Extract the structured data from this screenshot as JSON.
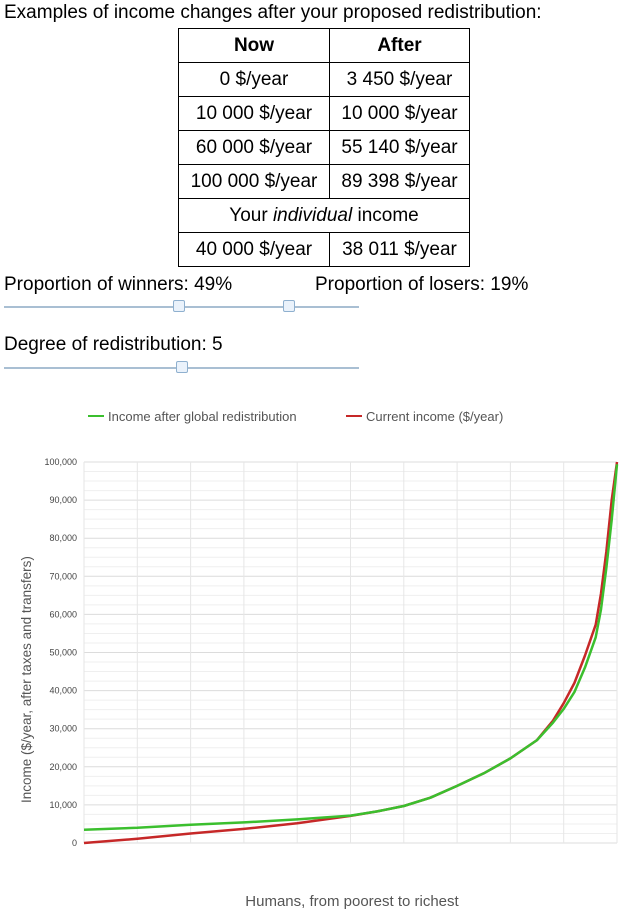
{
  "title": "Examples of income changes after your proposed redistribution:",
  "table": {
    "headers": [
      "Now",
      "After"
    ],
    "rows": [
      [
        "0 $/year",
        "3 450 $/year"
      ],
      [
        "10 000 $/year",
        "10 000 $/year"
      ],
      [
        "60 000 $/year",
        "55 140 $/year"
      ],
      [
        "100 000 $/year",
        "89 398 $/year"
      ]
    ],
    "individual_prefix": "Your ",
    "individual_em": "individual",
    "individual_suffix": " income",
    "individual_row": [
      "40 000 $/year",
      "38 011 $/year"
    ]
  },
  "controls": {
    "winners_label": "Proportion of winners: 49%",
    "losers_label": "Proportion of losers: 19%",
    "winners_value_pct": 49,
    "losers_value_pct": 19,
    "degree_label": "Degree of redistribution: 5",
    "degree_value": 5
  },
  "colors": {
    "after_series": "#3bbf2e",
    "current_series": "#c62828",
    "gridline": "#e6e6e6",
    "slider_track": "#a9bfd3"
  },
  "chart_data": {
    "type": "line",
    "title": "",
    "xlabel": "Humans, from poorest to richest",
    "ylabel": "Income ($/year, after taxes and transfers)",
    "ylim": [
      0,
      100000
    ],
    "yticks": [
      0,
      10000,
      20000,
      30000,
      40000,
      50000,
      60000,
      70000,
      80000,
      90000,
      100000
    ],
    "ytick_labels": [
      "0",
      "10,000",
      "20,000",
      "30,000",
      "40,000",
      "50,000",
      "60,000",
      "70,000",
      "80,000",
      "90,000",
      "100,000"
    ],
    "xlim": [
      0,
      100
    ],
    "grid": true,
    "legend_position": "top",
    "x": [
      0,
      10,
      20,
      30,
      40,
      50,
      55,
      60,
      65,
      70,
      75,
      80,
      85,
      88,
      90,
      92,
      94,
      96,
      97,
      98,
      99,
      100
    ],
    "series": [
      {
        "name": "Income after global redistribution",
        "color": "#3bbf2e",
        "values": [
          3500,
          4000,
          4800,
          5400,
          6200,
          7200,
          8300,
          9700,
          11900,
          15000,
          18300,
          22200,
          27000,
          31600,
          35200,
          39600,
          46100,
          54000,
          61300,
          72100,
          84800,
          99400
        ]
      },
      {
        "name": "Current income ($/year)",
        "color": "#c62828",
        "values": [
          0,
          1100,
          2500,
          3700,
          5200,
          7100,
          8300,
          9700,
          11900,
          15000,
          18300,
          22200,
          27000,
          32100,
          36700,
          42000,
          49200,
          57300,
          65500,
          76400,
          90000,
          100000
        ]
      }
    ]
  }
}
